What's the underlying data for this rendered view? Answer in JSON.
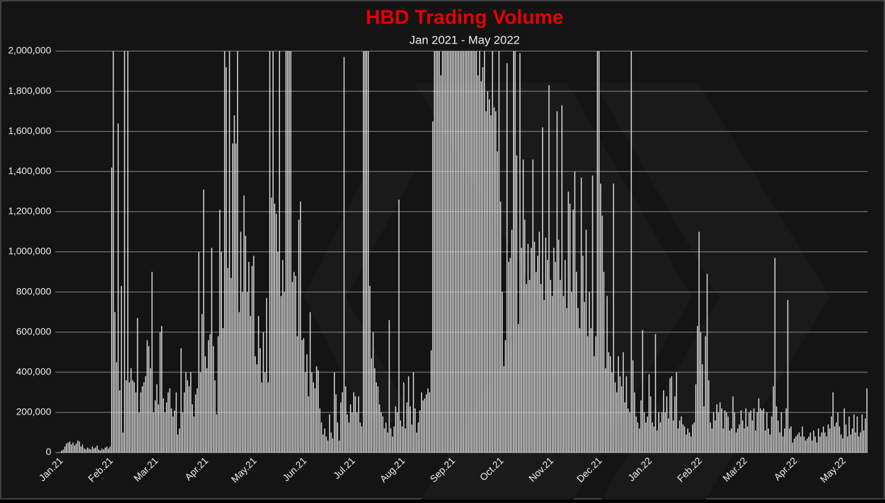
{
  "chart_data": {
    "type": "bar",
    "title": "HBD Trading Volume",
    "subtitle": "Jan 2021 - May 2022",
    "categories": [
      "Jan.21",
      null,
      null,
      null,
      null,
      null,
      null,
      null,
      null,
      null,
      null,
      null,
      null,
      null,
      null,
      null,
      null,
      null,
      null,
      null,
      null,
      null,
      null,
      null,
      null,
      null,
      null,
      null,
      null,
      null,
      null,
      "Feb.21",
      null,
      null,
      null,
      null,
      null,
      null,
      null,
      null,
      null,
      null,
      null,
      null,
      null,
      null,
      null,
      null,
      null,
      null,
      null,
      null,
      null,
      null,
      null,
      null,
      null,
      null,
      null,
      "Mar.21",
      null,
      null,
      null,
      null,
      null,
      null,
      null,
      null,
      null,
      null,
      null,
      null,
      null,
      null,
      null,
      null,
      null,
      null,
      null,
      null,
      null,
      null,
      null,
      null,
      null,
      null,
      null,
      null,
      null,
      null,
      "Apr.21",
      null,
      null,
      null,
      null,
      null,
      null,
      null,
      null,
      null,
      null,
      null,
      null,
      null,
      null,
      null,
      null,
      null,
      null,
      null,
      null,
      null,
      null,
      null,
      null,
      null,
      null,
      null,
      null,
      null,
      "May.21",
      null,
      null,
      null,
      null,
      null,
      null,
      null,
      null,
      null,
      null,
      null,
      null,
      null,
      null,
      null,
      null,
      null,
      null,
      null,
      null,
      null,
      null,
      null,
      null,
      null,
      null,
      null,
      null,
      null,
      null,
      "Jun.21",
      null,
      null,
      null,
      null,
      null,
      null,
      null,
      null,
      null,
      null,
      null,
      null,
      null,
      null,
      null,
      null,
      null,
      null,
      null,
      null,
      null,
      null,
      null,
      null,
      null,
      null,
      null,
      null,
      null,
      "Jul.21",
      null,
      null,
      null,
      null,
      null,
      null,
      null,
      null,
      null,
      null,
      null,
      null,
      null,
      null,
      null,
      null,
      null,
      null,
      null,
      null,
      null,
      null,
      null,
      null,
      null,
      null,
      null,
      null,
      null,
      null,
      "Aug.21",
      null,
      null,
      null,
      null,
      null,
      null,
      null,
      null,
      null,
      null,
      null,
      null,
      null,
      null,
      null,
      null,
      null,
      null,
      null,
      null,
      null,
      null,
      null,
      null,
      null,
      null,
      null,
      null,
      null,
      null,
      "Sep.21",
      null,
      null,
      null,
      null,
      null,
      null,
      null,
      null,
      null,
      null,
      null,
      null,
      null,
      null,
      null,
      null,
      null,
      null,
      null,
      null,
      null,
      null,
      null,
      null,
      null,
      null,
      null,
      null,
      null,
      "Oct.21",
      null,
      null,
      null,
      null,
      null,
      null,
      null,
      null,
      null,
      null,
      null,
      null,
      null,
      null,
      null,
      null,
      null,
      null,
      null,
      null,
      null,
      null,
      null,
      null,
      null,
      null,
      null,
      null,
      null,
      null,
      "Nov.21",
      null,
      null,
      null,
      null,
      null,
      null,
      null,
      null,
      null,
      null,
      null,
      null,
      null,
      null,
      null,
      null,
      null,
      null,
      null,
      null,
      null,
      null,
      null,
      null,
      null,
      null,
      null,
      null,
      null,
      "Dec.21",
      null,
      null,
      null,
      null,
      null,
      null,
      null,
      null,
      null,
      null,
      null,
      null,
      null,
      null,
      null,
      null,
      null,
      null,
      null,
      null,
      null,
      null,
      null,
      null,
      null,
      null,
      null,
      null,
      null,
      null,
      "Jan.22",
      null,
      null,
      null,
      null,
      null,
      null,
      null,
      null,
      null,
      null,
      null,
      null,
      null,
      null,
      null,
      null,
      null,
      null,
      null,
      null,
      null,
      null,
      null,
      null,
      null,
      null,
      null,
      null,
      null,
      null,
      "Feb.22",
      null,
      null,
      null,
      null,
      null,
      null,
      null,
      null,
      null,
      null,
      null,
      null,
      null,
      null,
      null,
      null,
      null,
      null,
      null,
      null,
      null,
      null,
      null,
      null,
      null,
      null,
      null,
      "Mar.22",
      null,
      null,
      null,
      null,
      null,
      null,
      null,
      null,
      null,
      null,
      null,
      null,
      null,
      null,
      null,
      null,
      null,
      null,
      null,
      null,
      null,
      null,
      null,
      null,
      null,
      null,
      null,
      null,
      null,
      null,
      "Apr.22",
      null,
      null,
      null,
      null,
      null,
      null,
      null,
      null,
      null,
      null,
      null,
      null,
      null,
      null,
      null,
      null,
      null,
      null,
      null,
      null,
      null,
      null,
      null,
      null,
      null,
      null,
      null,
      null,
      null,
      "May.22",
      null,
      null,
      null,
      null,
      null,
      null,
      null,
      null,
      null,
      null,
      null,
      null,
      null,
      null
    ],
    "values": [
      10000,
      15000,
      30000,
      45000,
      50000,
      55000,
      40000,
      50000,
      35000,
      45000,
      60000,
      55000,
      30000,
      40000,
      20000,
      15000,
      25000,
      20000,
      15000,
      30000,
      20000,
      25000,
      35000,
      15000,
      10000,
      20000,
      15000,
      25000,
      30000,
      20000,
      30000,
      1420000,
      2000000,
      700000,
      450000,
      1640000,
      310000,
      830000,
      100000,
      2000000,
      360000,
      2000000,
      350000,
      420000,
      360000,
      350000,
      300000,
      670000,
      200000,
      300000,
      330000,
      350000,
      380000,
      560000,
      530000,
      420000,
      900000,
      200000,
      260000,
      340000,
      240000,
      600000,
      630000,
      270000,
      200000,
      250000,
      300000,
      320000,
      220000,
      180000,
      210000,
      300000,
      90000,
      120000,
      520000,
      200000,
      300000,
      400000,
      360000,
      330000,
      400000,
      240000,
      180000,
      290000,
      320000,
      1000000,
      400000,
      690000,
      1310000,
      480000,
      420000,
      560000,
      590000,
      1020000,
      530000,
      360000,
      190000,
      580000,
      1210000,
      1000000,
      620000,
      2000000,
      1920000,
      920000,
      2000000,
      870000,
      1540000,
      1680000,
      1540000,
      2000000,
      700000,
      1100000,
      800000,
      1280000,
      1080000,
      800000,
      950000,
      680000,
      930000,
      980000,
      480000,
      440000,
      680000,
      520000,
      350000,
      600000,
      400000,
      770000,
      350000,
      2000000,
      1270000,
      2000000,
      1240000,
      1190000,
      1000000,
      2000000,
      780000,
      960000,
      800000,
      2000000,
      2000000,
      2000000,
      2000000,
      850000,
      900000,
      880000,
      580000,
      1160000,
      1250000,
      560000,
      570000,
      400000,
      490000,
      280000,
      700000,
      400000,
      350000,
      320000,
      430000,
      410000,
      220000,
      150000,
      90000,
      120000,
      80000,
      60000,
      190000,
      100000,
      70000,
      400000,
      290000,
      150000,
      60000,
      250000,
      300000,
      1970000,
      330000,
      190000,
      150000,
      240000,
      200000,
      300000,
      280000,
      200000,
      280000,
      150000,
      130000,
      2000000,
      2000000,
      2000000,
      2000000,
      830000,
      470000,
      600000,
      420000,
      350000,
      330000,
      240000,
      200000,
      180000,
      120000,
      150000,
      100000,
      660000,
      120000,
      80000,
      130000,
      230000,
      200000,
      1260000,
      160000,
      130000,
      350000,
      120000,
      250000,
      380000,
      230000,
      140000,
      400000,
      220000,
      100000,
      150000,
      210000,
      300000,
      260000,
      270000,
      290000,
      320000,
      300000,
      510000,
      1650000,
      2000000,
      2000000,
      2000000,
      2000000,
      1880000,
      2000000,
      2000000,
      2000000,
      2000000,
      2000000,
      2000000,
      2000000,
      2000000,
      2000000,
      2000000,
      2000000,
      2000000,
      2000000,
      2000000,
      2000000,
      2000000,
      2000000,
      2000000,
      2000000,
      2000000,
      2000000,
      2000000,
      1880000,
      2000000,
      1850000,
      1920000,
      2000000,
      1700000,
      1800000,
      1760000,
      1680000,
      2000000,
      1720000,
      1700000,
      1500000,
      2000000,
      1250000,
      800000,
      430000,
      560000,
      1940000,
      950000,
      970000,
      1110000,
      2000000,
      2000000,
      1480000,
      640000,
      1990000,
      1020000,
      1460000,
      1160000,
      840000,
      1040000,
      860000,
      1020000,
      1460000,
      1050000,
      900000,
      980000,
      1100000,
      840000,
      1620000,
      760000,
      1070000,
      960000,
      1830000,
      860000,
      780000,
      1020000,
      950000,
      1700000,
      1060000,
      860000,
      1730000,
      780000,
      960000,
      720000,
      1300000,
      1240000,
      800000,
      1210000,
      1400000,
      900000,
      720000,
      620000,
      1370000,
      980000,
      750000,
      1110000,
      580000,
      800000,
      620000,
      1380000,
      480000,
      580000,
      2000000,
      2000000,
      1340000,
      1180000,
      900000,
      420000,
      780000,
      500000,
      480000,
      400000,
      1340000,
      350000,
      300000,
      480000,
      380000,
      330000,
      500000,
      250000,
      380000,
      220000,
      200000,
      2000000,
      460000,
      300000,
      180000,
      150000,
      120000,
      260000,
      610000,
      200000,
      150000,
      180000,
      390000,
      280000,
      150000,
      130000,
      590000,
      110000,
      200000,
      150000,
      200000,
      310000,
      200000,
      280000,
      170000,
      370000,
      380000,
      160000,
      280000,
      400000,
      120000,
      160000,
      180000,
      140000,
      130000,
      90000,
      120000,
      100000,
      80000,
      140000,
      150000,
      340000,
      630000,
      1100000,
      600000,
      440000,
      230000,
      580000,
      890000,
      360000,
      150000,
      120000,
      200000,
      160000,
      240000,
      200000,
      250000,
      220000,
      120000,
      210000,
      200000,
      180000,
      110000,
      120000,
      280000,
      200000,
      100000,
      120000,
      140000,
      210000,
      160000,
      120000,
      220000,
      130000,
      200000,
      210000,
      160000,
      220000,
      110000,
      200000,
      270000,
      220000,
      210000,
      220000,
      110000,
      200000,
      120000,
      90000,
      180000,
      330000,
      970000,
      230000,
      160000,
      100000,
      200000,
      80000,
      120000,
      220000,
      760000,
      120000,
      130000,
      50000,
      70000,
      80000,
      90000,
      100000,
      80000,
      130000,
      80000,
      60000,
      70000,
      80000,
      100000,
      60000,
      110000,
      80000,
      50000,
      120000,
      80000,
      100000,
      130000,
      100000,
      80000,
      140000,
      120000,
      180000,
      300000,
      130000,
      150000,
      200000,
      130000,
      90000,
      70000,
      220000,
      140000,
      80000,
      180000,
      90000,
      120000,
      190000,
      100000,
      180000,
      80000,
      100000,
      190000,
      110000,
      170000,
      320000
    ],
    "color": "#e8e8e8",
    "ylim": [
      0,
      2000000
    ],
    "yticks": [
      {
        "value": 0,
        "label": "0"
      },
      {
        "value": 200000,
        "label": "200,000"
      },
      {
        "value": 400000,
        "label": "400,000"
      },
      {
        "value": 600000,
        "label": "600,000"
      },
      {
        "value": 800000,
        "label": "800,000"
      },
      {
        "value": 1000000,
        "label": "1,000,000"
      },
      {
        "value": 1200000,
        "label": "1,200,000"
      },
      {
        "value": 1400000,
        "label": "1,400,000"
      },
      {
        "value": 1600000,
        "label": "1,600,000"
      },
      {
        "value": 1800000,
        "label": "1,800,000"
      },
      {
        "value": 2000000,
        "label": "2,000,000"
      }
    ],
    "grid": true
  }
}
